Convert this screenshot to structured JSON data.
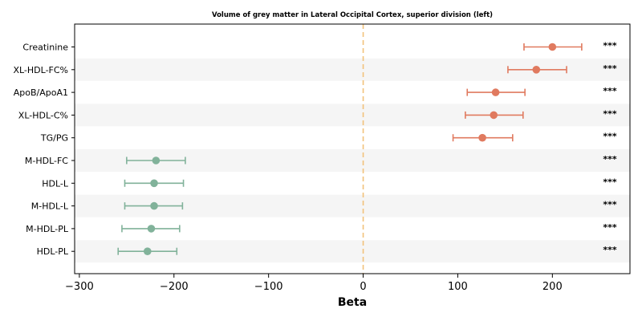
{
  "chart_data": {
    "type": "forest",
    "title": "Volume of grey matter in Lateral Occipital Cortex, superior division (left)",
    "xlabel": "Beta",
    "ylabel": "",
    "xlim": [
      -305,
      282
    ],
    "xticks": [
      -300,
      -200,
      -100,
      0,
      100,
      200
    ],
    "xtick_labels": [
      "−300",
      "−200",
      "−100",
      "0",
      "100",
      "200"
    ],
    "reference_line": 0,
    "grid": false,
    "colors": {
      "positive": "#e07a5f",
      "negative": "#81b29a",
      "reference_line": "#f2c27a",
      "band": "#f5f5f5"
    },
    "rows": [
      {
        "label": "Creatinine",
        "beta": 200,
        "ci_low": 170,
        "ci_high": 231,
        "significance": "***"
      },
      {
        "label": "XL-HDL-FC%",
        "beta": 183,
        "ci_low": 153,
        "ci_high": 215,
        "significance": "***"
      },
      {
        "label": "ApoB/ApoA1",
        "beta": 140,
        "ci_low": 110,
        "ci_high": 171,
        "significance": "***"
      },
      {
        "label": "XL-HDL-C%",
        "beta": 138,
        "ci_low": 108,
        "ci_high": 169,
        "significance": "***"
      },
      {
        "label": "TG/PG",
        "beta": 126,
        "ci_low": 95,
        "ci_high": 158,
        "significance": "***"
      },
      {
        "label": "M-HDL-FC",
        "beta": -219,
        "ci_low": -250,
        "ci_high": -188,
        "significance": "***"
      },
      {
        "label": "HDL-L",
        "beta": -221,
        "ci_low": -252,
        "ci_high": -190,
        "significance": "***"
      },
      {
        "label": "M-HDL-L",
        "beta": -221,
        "ci_low": -252,
        "ci_high": -191,
        "significance": "***"
      },
      {
        "label": "M-HDL-PL",
        "beta": -224,
        "ci_low": -255,
        "ci_high": -194,
        "significance": "***"
      },
      {
        "label": "HDL-PL",
        "beta": -228,
        "ci_low": -259,
        "ci_high": -197,
        "significance": "***"
      }
    ]
  }
}
